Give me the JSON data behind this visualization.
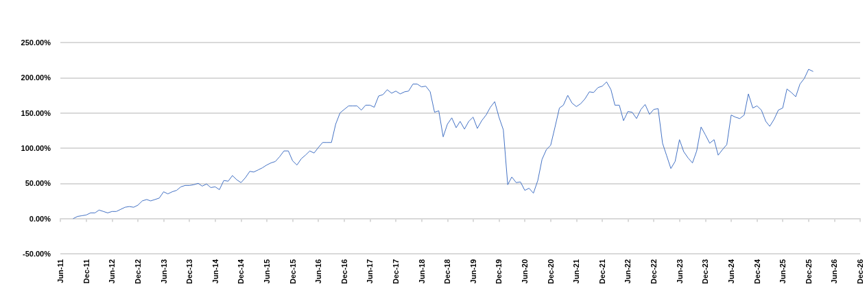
{
  "chart_data": {
    "type": "line",
    "x": [
      "2011-09",
      "2011-10",
      "2011-11",
      "2011-12",
      "2012-01",
      "2012-02",
      "2012-03",
      "2012-04",
      "2012-05",
      "2012-06",
      "2012-07",
      "2012-08",
      "2012-09",
      "2012-10",
      "2012-11",
      "2012-12",
      "2013-01",
      "2013-02",
      "2013-03",
      "2013-04",
      "2013-05",
      "2013-06",
      "2013-07",
      "2013-08",
      "2013-09",
      "2013-10",
      "2013-11",
      "2013-12",
      "2014-01",
      "2014-02",
      "2014-03",
      "2014-04",
      "2014-05",
      "2014-06",
      "2014-07",
      "2014-08",
      "2014-09",
      "2014-10",
      "2014-11",
      "2014-12",
      "2015-01",
      "2015-02",
      "2015-03",
      "2015-04",
      "2015-05",
      "2015-06",
      "2015-07",
      "2015-08",
      "2015-09",
      "2015-10",
      "2015-11",
      "2015-12",
      "2016-01",
      "2016-02",
      "2016-03",
      "2016-04",
      "2016-05",
      "2016-06",
      "2016-07",
      "2016-08",
      "2016-09",
      "2016-10",
      "2016-11",
      "2016-12",
      "2017-01",
      "2017-02",
      "2017-03",
      "2017-04",
      "2017-05",
      "2017-06",
      "2017-07",
      "2017-08",
      "2017-09",
      "2017-10",
      "2017-11",
      "2017-12",
      "2018-01",
      "2018-02",
      "2018-03",
      "2018-04",
      "2018-05",
      "2018-06",
      "2018-07",
      "2018-08",
      "2018-09",
      "2018-10",
      "2018-11",
      "2018-12",
      "2019-01",
      "2019-02",
      "2019-03",
      "2019-04",
      "2019-05",
      "2019-06",
      "2019-07",
      "2019-08",
      "2019-09",
      "2019-10",
      "2019-11",
      "2019-12",
      "2020-01",
      "2020-02",
      "2020-03",
      "2020-04",
      "2020-05",
      "2020-06",
      "2020-07",
      "2020-08",
      "2020-09",
      "2020-10",
      "2020-11",
      "2020-12",
      "2021-01",
      "2021-02",
      "2021-03",
      "2021-04",
      "2021-05",
      "2021-06",
      "2021-07",
      "2021-08",
      "2021-09",
      "2021-10",
      "2021-11",
      "2021-12",
      "2022-01",
      "2022-02",
      "2022-03",
      "2022-04",
      "2022-05",
      "2022-06",
      "2022-07",
      "2022-08",
      "2022-09",
      "2022-10",
      "2022-11",
      "2022-12",
      "2023-01",
      "2023-02",
      "2023-03",
      "2023-04",
      "2023-05",
      "2023-06",
      "2023-07",
      "2023-08",
      "2023-09",
      "2023-10",
      "2023-11",
      "2023-12",
      "2024-01",
      "2024-02",
      "2024-03",
      "2024-04",
      "2024-05",
      "2024-06",
      "2024-07",
      "2024-08",
      "2024-09",
      "2024-10",
      "2024-11",
      "2024-12",
      "2025-01",
      "2025-02",
      "2025-03",
      "2025-04",
      "2025-05",
      "2025-06",
      "2025-07",
      "2025-08",
      "2025-09",
      "2025-10",
      "2025-11",
      "2025-12",
      "2026-01"
    ],
    "series": [
      {
        "color": "#4472c4",
        "values": [
          0,
          3,
          4,
          5,
          8,
          8,
          12,
          10,
          8,
          10,
          10,
          13,
          16,
          17,
          16,
          19,
          25,
          27,
          25,
          27,
          29,
          38,
          35,
          38,
          40,
          45,
          47,
          47,
          48,
          50,
          46,
          49,
          44,
          45,
          41,
          54,
          53,
          61,
          55,
          51,
          58,
          67,
          66,
          69,
          72,
          76,
          79,
          81,
          88,
          96,
          96,
          82,
          76,
          85,
          90,
          96,
          93,
          101,
          108,
          108,
          108,
          134,
          150,
          155,
          160,
          160,
          160,
          154,
          161,
          161,
          158,
          174,
          176,
          183,
          178,
          181,
          177,
          180,
          181,
          191,
          191,
          187,
          188,
          180,
          151,
          153,
          116,
          134,
          143,
          129,
          138,
          127,
          138,
          144,
          128,
          139,
          147,
          158,
          166,
          144,
          126,
          48,
          59,
          51,
          52,
          40,
          43,
          36,
          54,
          84,
          98,
          104,
          130,
          157,
          161,
          175,
          164,
          159,
          163,
          170,
          180,
          179,
          186,
          188,
          194,
          183,
          161,
          161,
          139,
          152,
          151,
          142,
          155,
          162,
          148,
          155,
          156,
          107,
          90,
          71,
          81,
          112,
          95,
          86,
          79,
          96,
          130,
          119,
          107,
          112,
          90,
          98,
          105,
          147,
          144,
          142,
          147,
          177,
          157,
          160,
          154,
          138,
          131,
          141,
          154,
          157,
          184,
          179,
          173,
          191,
          199,
          212,
          209
        ]
      }
    ],
    "xlim": [
      "2011-06",
      "2026-12"
    ],
    "xticks": [
      {
        "value": "2011-06",
        "label": "Jun-11"
      },
      {
        "value": "2011-12",
        "label": "Dec-11"
      },
      {
        "value": "2012-06",
        "label": "Jun-12"
      },
      {
        "value": "2012-12",
        "label": "Dec-12"
      },
      {
        "value": "2013-06",
        "label": "Jun-13"
      },
      {
        "value": "2013-12",
        "label": "Dec-13"
      },
      {
        "value": "2014-06",
        "label": "Jun-14"
      },
      {
        "value": "2014-12",
        "label": "Dec-14"
      },
      {
        "value": "2015-06",
        "label": "Jun-15"
      },
      {
        "value": "2015-12",
        "label": "Dec-15"
      },
      {
        "value": "2016-06",
        "label": "Jun-16"
      },
      {
        "value": "2016-12",
        "label": "Dec-16"
      },
      {
        "value": "2017-06",
        "label": "Jun-17"
      },
      {
        "value": "2017-12",
        "label": "Dec-17"
      },
      {
        "value": "2018-06",
        "label": "Jun-18"
      },
      {
        "value": "2018-12",
        "label": "Dec-18"
      },
      {
        "value": "2019-06",
        "label": "Jun-19"
      },
      {
        "value": "2019-12",
        "label": "Dec-19"
      },
      {
        "value": "2020-06",
        "label": "Jun-20"
      },
      {
        "value": "2020-12",
        "label": "Dec-20"
      },
      {
        "value": "2021-06",
        "label": "Jun-21"
      },
      {
        "value": "2021-12",
        "label": "Dec-21"
      },
      {
        "value": "2022-06",
        "label": "Jun-22"
      },
      {
        "value": "2022-12",
        "label": "Dec-22"
      },
      {
        "value": "2023-06",
        "label": "Jun-23"
      },
      {
        "value": "2023-12",
        "label": "Dec-23"
      },
      {
        "value": "2024-06",
        "label": "Jun-24"
      },
      {
        "value": "2024-12",
        "label": "Dec-24"
      },
      {
        "value": "2025-06",
        "label": "Jun-25"
      },
      {
        "value": "2025-12",
        "label": "Dec-25"
      },
      {
        "value": "2026-06",
        "label": "Jun-26"
      },
      {
        "value": "2026-12",
        "label": "Dec-26"
      }
    ],
    "ylim": [
      -50,
      250
    ],
    "yticks": [
      {
        "value": -50,
        "label": "-50.00%"
      },
      {
        "value": 0,
        "label": "0.00%"
      },
      {
        "value": 50,
        "label": "50.00%"
      },
      {
        "value": 100,
        "label": "100.00%"
      },
      {
        "value": 150,
        "label": "150.00%"
      },
      {
        "value": 200,
        "label": "200.00%"
      },
      {
        "value": 250,
        "label": "250.00%"
      }
    ],
    "grid": "y",
    "marker": "none",
    "line_style": "solid"
  }
}
